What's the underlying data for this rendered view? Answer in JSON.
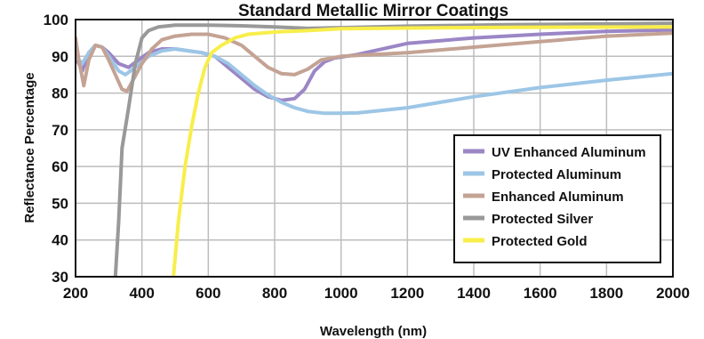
{
  "chart_data": {
    "type": "line",
    "title": "Standard Metallic Mirror Coatings",
    "xlabel": "Wavelength (nm)",
    "ylabel": "Reflectance Percentage",
    "xlim": [
      200,
      2000
    ],
    "ylim": [
      30,
      100
    ],
    "xticks": [
      200,
      400,
      600,
      800,
      1000,
      1200,
      1400,
      1600,
      1800,
      2000
    ],
    "yticks": [
      30,
      40,
      50,
      60,
      70,
      80,
      90,
      100
    ],
    "grid": true,
    "legend_position": "bottom-right",
    "series": [
      {
        "name": "UV Enhanced Aluminum",
        "color": "#9b86c6",
        "points": [
          [
            200,
            90
          ],
          [
            220,
            86
          ],
          [
            240,
            91
          ],
          [
            260,
            93
          ],
          [
            280,
            92.5
          ],
          [
            300,
            91
          ],
          [
            330,
            88
          ],
          [
            360,
            87
          ],
          [
            390,
            89
          ],
          [
            420,
            91
          ],
          [
            460,
            92
          ],
          [
            500,
            92
          ],
          [
            540,
            91.5
          ],
          [
            580,
            91
          ],
          [
            620,
            90
          ],
          [
            660,
            87
          ],
          [
            700,
            84
          ],
          [
            740,
            81
          ],
          [
            780,
            79
          ],
          [
            820,
            78
          ],
          [
            860,
            78.5
          ],
          [
            890,
            81
          ],
          [
            920,
            86
          ],
          [
            950,
            88.5
          ],
          [
            980,
            89.5
          ],
          [
            1050,
            90.5
          ],
          [
            1200,
            93.5
          ],
          [
            1400,
            95
          ],
          [
            1600,
            96
          ],
          [
            1800,
            96.8
          ],
          [
            2000,
            97.2
          ]
        ]
      },
      {
        "name": "Protected Aluminum",
        "color": "#9dc6e6",
        "points": [
          [
            200,
            90
          ],
          [
            220,
            88
          ],
          [
            240,
            91
          ],
          [
            260,
            93
          ],
          [
            280,
            92.5
          ],
          [
            300,
            90
          ],
          [
            330,
            86
          ],
          [
            350,
            85
          ],
          [
            380,
            87
          ],
          [
            420,
            90
          ],
          [
            460,
            91.5
          ],
          [
            500,
            92
          ],
          [
            540,
            91.5
          ],
          [
            580,
            91
          ],
          [
            620,
            90
          ],
          [
            660,
            88
          ],
          [
            700,
            85
          ],
          [
            740,
            82
          ],
          [
            780,
            79.5
          ],
          [
            820,
            77.5
          ],
          [
            860,
            76
          ],
          [
            900,
            75
          ],
          [
            950,
            74.5
          ],
          [
            1000,
            74.5
          ],
          [
            1050,
            74.6
          ],
          [
            1200,
            76
          ],
          [
            1400,
            79
          ],
          [
            1600,
            81.5
          ],
          [
            1800,
            83.5
          ],
          [
            2000,
            85.3
          ]
        ]
      },
      {
        "name": "Enhanced Aluminum",
        "color": "#c4a394",
        "points": [
          [
            200,
            95
          ],
          [
            210,
            89
          ],
          [
            225,
            82
          ],
          [
            240,
            89
          ],
          [
            260,
            93
          ],
          [
            280,
            92.5
          ],
          [
            300,
            89
          ],
          [
            320,
            85
          ],
          [
            340,
            81
          ],
          [
            355,
            80.5
          ],
          [
            370,
            83
          ],
          [
            400,
            88
          ],
          [
            430,
            92
          ],
          [
            460,
            94.5
          ],
          [
            500,
            95.5
          ],
          [
            550,
            96
          ],
          [
            600,
            96
          ],
          [
            650,
            95
          ],
          [
            700,
            93
          ],
          [
            740,
            90
          ],
          [
            780,
            87
          ],
          [
            820,
            85.3
          ],
          [
            860,
            85
          ],
          [
            900,
            86.5
          ],
          [
            940,
            89
          ],
          [
            1000,
            90
          ],
          [
            1200,
            91
          ],
          [
            1400,
            92.5
          ],
          [
            1600,
            94
          ],
          [
            1800,
            95.5
          ],
          [
            2000,
            96.3
          ]
        ]
      },
      {
        "name": "Protected Silver",
        "color": "#999999",
        "points": [
          [
            320,
            30
          ],
          [
            330,
            45
          ],
          [
            340,
            65
          ],
          [
            360,
            76
          ],
          [
            380,
            88
          ],
          [
            400,
            95
          ],
          [
            420,
            97
          ],
          [
            450,
            98
          ],
          [
            500,
            98.5
          ],
          [
            600,
            98.5
          ],
          [
            700,
            98.3
          ],
          [
            800,
            98
          ],
          [
            900,
            97.6
          ],
          [
            1000,
            97.8
          ],
          [
            1200,
            98.2
          ],
          [
            1500,
            98.6
          ],
          [
            2000,
            99
          ]
        ]
      },
      {
        "name": "Protected Gold",
        "color": "#f8ee4a",
        "points": [
          [
            495,
            30
          ],
          [
            510,
            45
          ],
          [
            530,
            60
          ],
          [
            550,
            71
          ],
          [
            570,
            80
          ],
          [
            590,
            87
          ],
          [
            610,
            91
          ],
          [
            640,
            93
          ],
          [
            680,
            95
          ],
          [
            720,
            96
          ],
          [
            800,
            96.6
          ],
          [
            900,
            97
          ],
          [
            1000,
            97.5
          ],
          [
            1200,
            97.7
          ],
          [
            1500,
            97.9
          ],
          [
            2000,
            98
          ]
        ]
      }
    ]
  }
}
